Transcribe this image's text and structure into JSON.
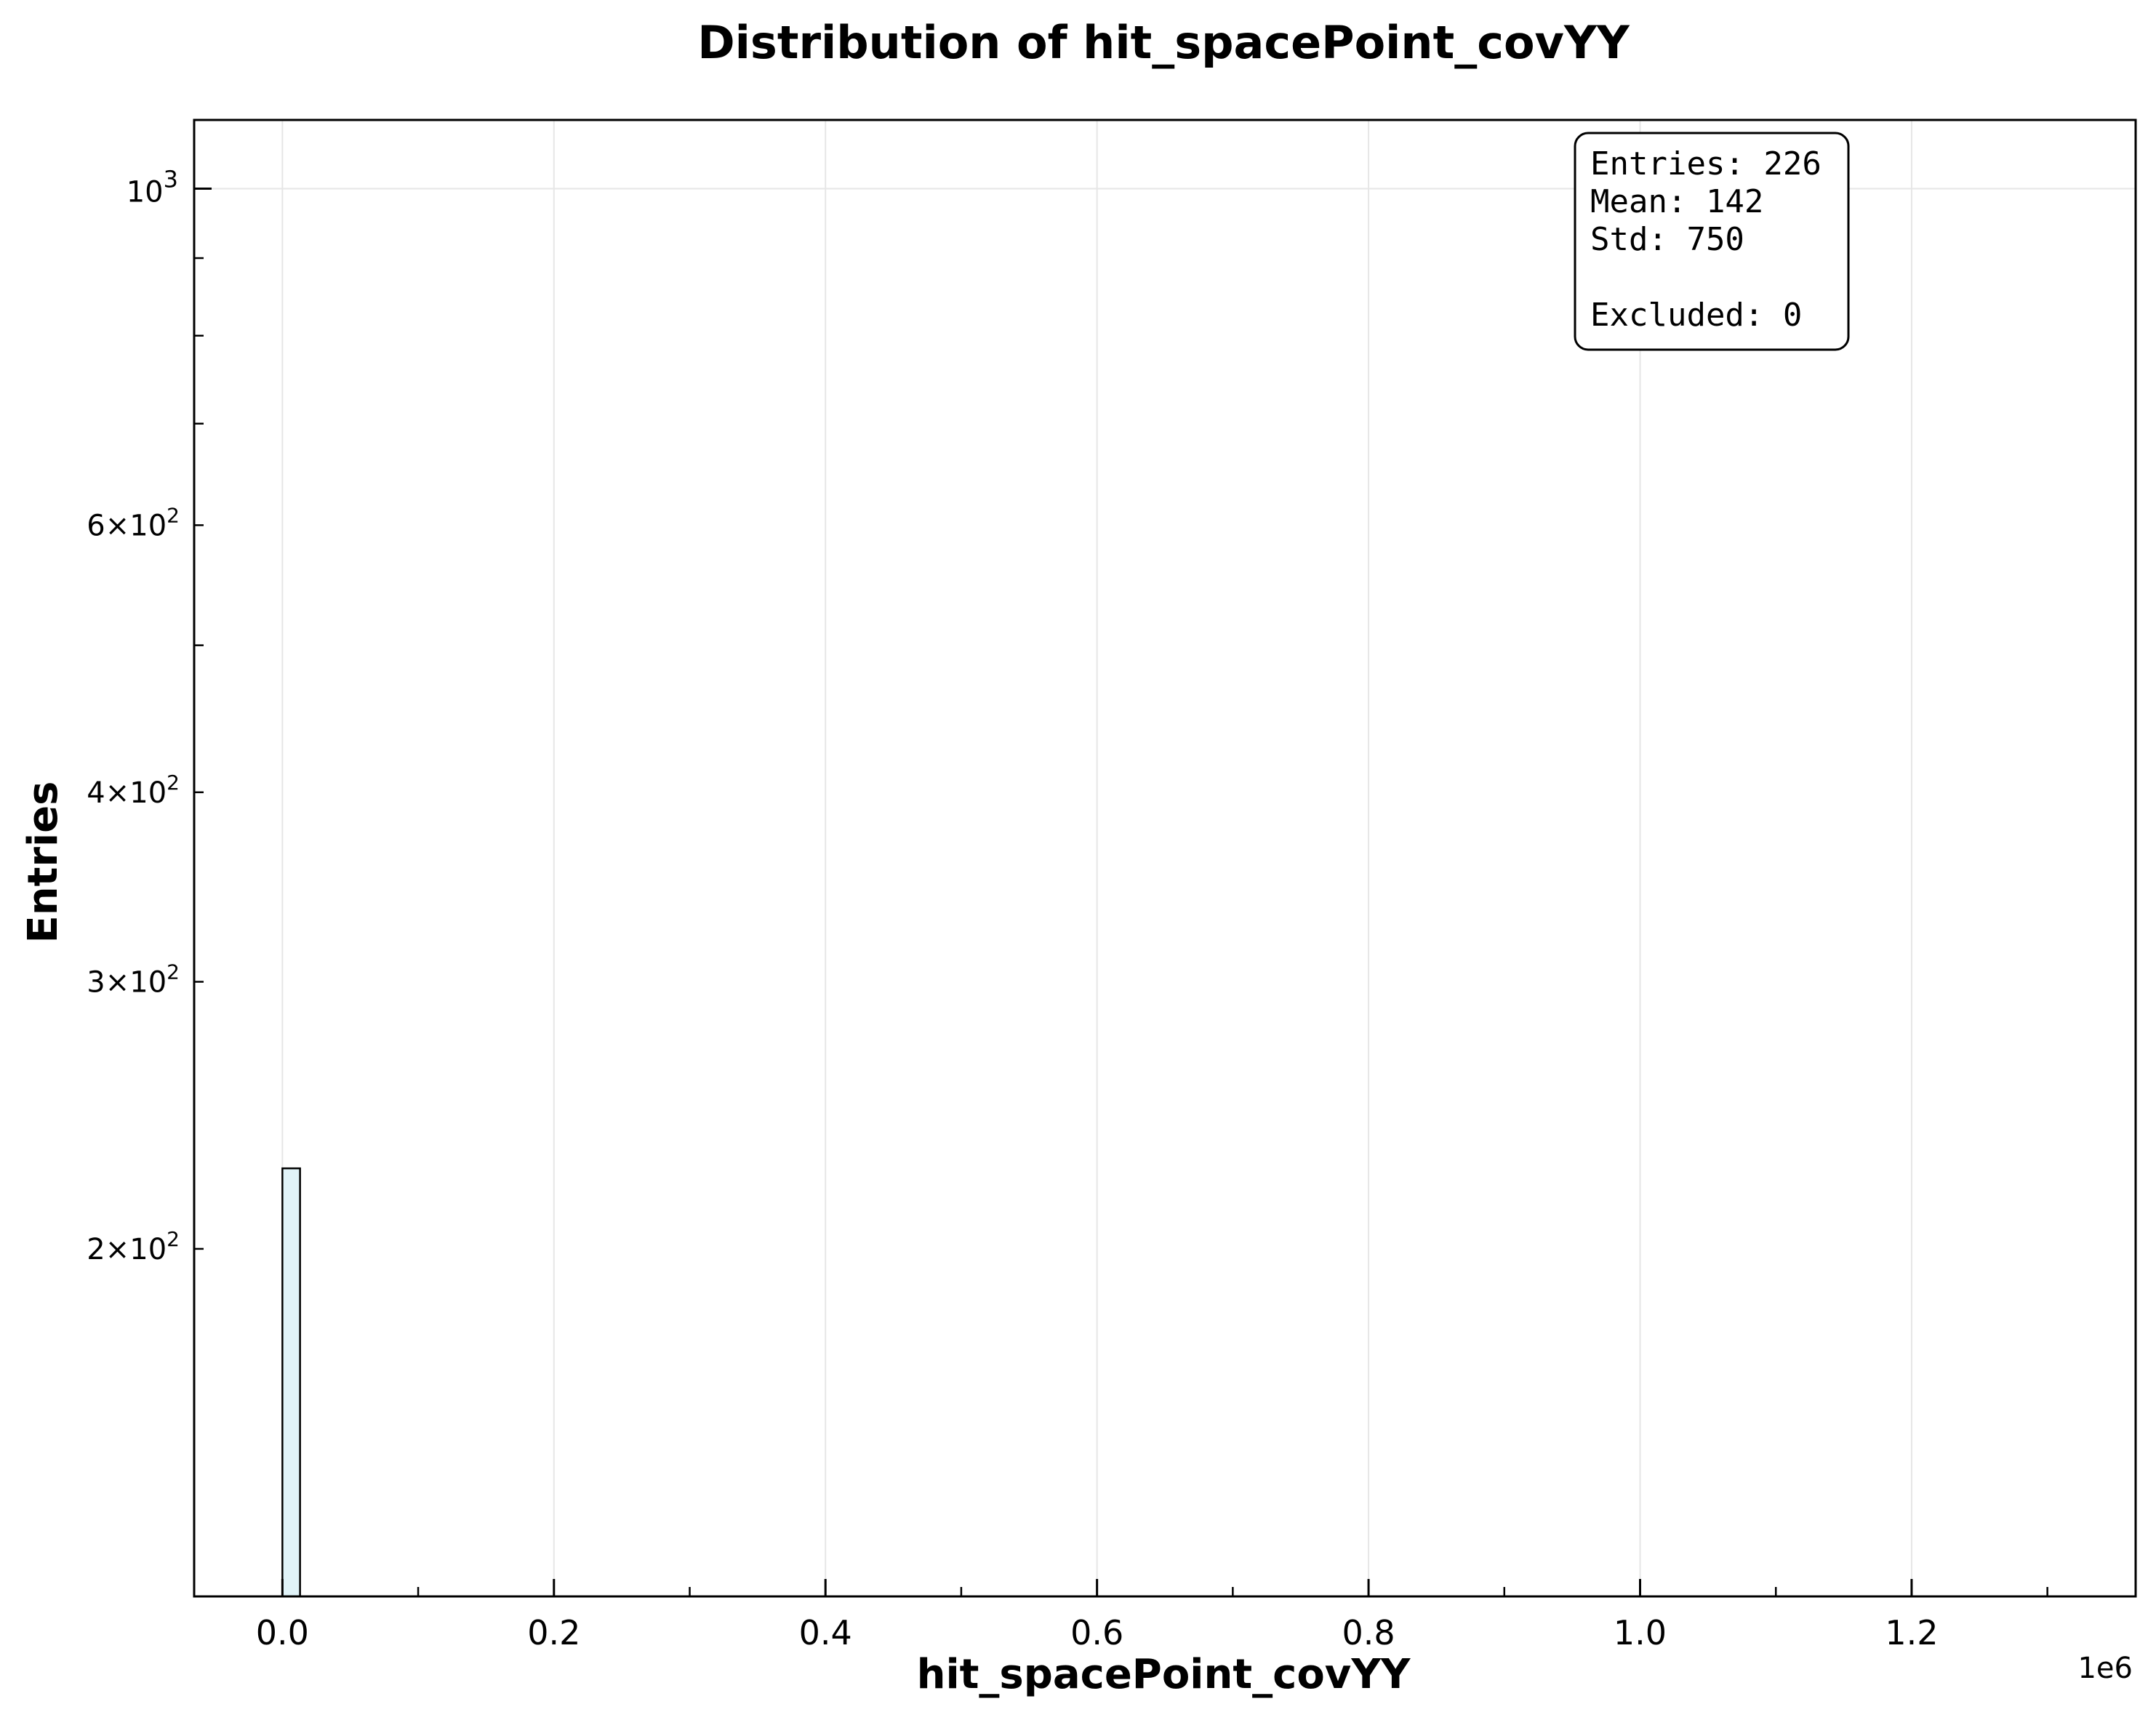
{
  "chart_data": {
    "type": "bar",
    "title": "Distribution of hit_spacePoint_covYY",
    "xlabel": "hit_spacePoint_covYY",
    "ylabel": "Entries",
    "x_offset_label": "1e6",
    "x_scale": "linear",
    "y_scale": "log",
    "xlim": [
      -65000,
      1365000
    ],
    "ylim": [
      118,
      1110
    ],
    "grid": true,
    "x_ticks": [
      0,
      200000,
      400000,
      600000,
      800000,
      1000000,
      1200000
    ],
    "x_tick_labels": [
      "0.0",
      "0.2",
      "0.4",
      "0.6",
      "0.8",
      "1.0",
      "1.2"
    ],
    "y_major_ticks": [
      1000
    ],
    "y_major_tick_labels": [
      {
        "base": "10",
        "exp": "3"
      }
    ],
    "y_minor_ticks": [
      200,
      300,
      400,
      500,
      600,
      700,
      800,
      900
    ],
    "y_minor_tick_labels": [
      {
        "value": 600,
        "mant": "6",
        "base": "10",
        "exp": "2"
      },
      {
        "value": 400,
        "mant": "4",
        "base": "10",
        "exp": "2"
      },
      {
        "value": 300,
        "mant": "3",
        "base": "10",
        "exp": "2"
      },
      {
        "value": 200,
        "mant": "2",
        "base": "10",
        "exp": "2"
      }
    ],
    "bins": [
      {
        "x0": 0,
        "x1": 13000,
        "count": 226
      }
    ],
    "bar_fill": "#e0f3f8",
    "bar_edge": "#000000",
    "stats_box": {
      "position": "top-right",
      "lines": [
        "Entries: 226",
        "Mean: 142",
        "Std: 750",
        "",
        "Excluded: 0"
      ]
    }
  }
}
